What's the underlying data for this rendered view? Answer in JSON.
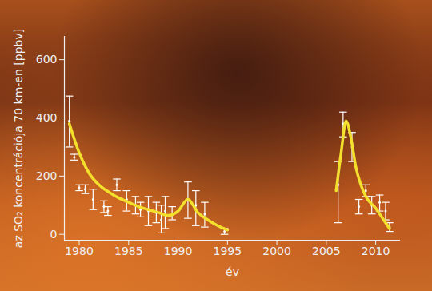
{
  "chart_data": {
    "type": "scatter",
    "x_label": "év",
    "y_label": "az SO₂ koncentrációja 70 km-en [ppbv]",
    "xlim": [
      1978.5,
      2012.5
    ],
    "xticks": [
      1980,
      1985,
      1990,
      1995,
      2000,
      2005,
      2010
    ],
    "ylim": [
      -20,
      680
    ],
    "yticks": [
      0,
      200,
      400,
      600
    ],
    "grid": false,
    "series": [
      {
        "type": "scatter",
        "color": "#ffffff",
        "marker": "errorbar",
        "x": [
          1979.0,
          1979.5,
          1980.0,
          1980.6,
          1981.4,
          1982.5,
          1982.9,
          1983.8,
          1984.8,
          1985.7,
          1986.2,
          1987.0,
          1987.8,
          1988.3,
          1988.7,
          1989.4,
          1991.0,
          1991.8,
          1992.7,
          1994.7,
          2006.2,
          2006.7,
          2007.6,
          2008.3,
          2009.0,
          2009.6,
          2010.4,
          2011.0,
          2011.4
        ],
        "values": [
          390,
          265,
          160,
          155,
          120,
          95,
          80,
          170,
          120,
          100,
          85,
          80,
          75,
          50,
          80,
          70,
          120,
          100,
          70,
          10,
          170,
          380,
          300,
          95,
          150,
          100,
          110,
          80,
          25
        ],
        "error_low": [
          300,
          255,
          150,
          140,
          85,
          75,
          65,
          150,
          80,
          70,
          60,
          30,
          40,
          5,
          20,
          50,
          55,
          30,
          25,
          0,
          40,
          335,
          250,
          70,
          130,
          70,
          80,
          50,
          10
        ],
        "error_high": [
          475,
          275,
          170,
          170,
          155,
          115,
          95,
          190,
          150,
          130,
          110,
          130,
          110,
          100,
          130,
          95,
          180,
          150,
          110,
          20,
          250,
          420,
          350,
          120,
          170,
          130,
          135,
          110,
          40
        ]
      },
      {
        "type": "line",
        "color": "#f2e02c",
        "x": [
          1979.0,
          1980.0,
          1981.0,
          1982.0,
          1983.0,
          1984.0,
          1985.0,
          1986.0,
          1987.0,
          1988.0,
          1989.0,
          1990.0,
          1991.0,
          1992.0,
          1993.0,
          1994.0,
          1995.0,
          2000.0,
          2006.0,
          2006.5,
          2007.0,
          2007.5,
          2008.0,
          2008.5,
          2009.0,
          2010.0,
          2011.0,
          2011.4
        ],
        "values": [
          380,
          280,
          210,
          170,
          145,
          125,
          110,
          95,
          85,
          75,
          65,
          80,
          120,
          75,
          50,
          30,
          15,
          null,
          150,
          280,
          390,
          330,
          230,
          170,
          130,
          90,
          40,
          20
        ]
      }
    ]
  }
}
